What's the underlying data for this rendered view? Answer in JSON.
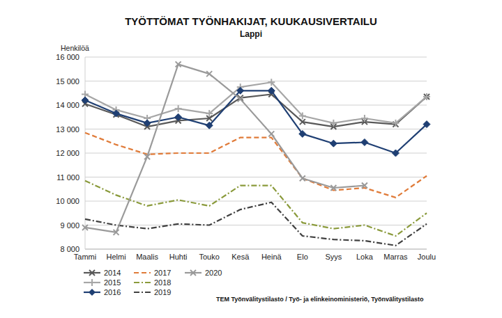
{
  "chart_data": {
    "type": "line",
    "title": "TYÖTTÖMAT TYÖNHAKIJAT, KUUKAUSIVERTAILU",
    "subtitle": "Lappi",
    "y_label": "Henkilöä",
    "source": "TEM Työnvälitystilasto / Työ- ja elinkeinoministeriö, Työnvälitystilasto",
    "categories": [
      "Tammi",
      "Helmi",
      "Maalis",
      "Huhti",
      "Touko",
      "Kesä",
      "Heinä",
      "Elo",
      "Syys",
      "Loka",
      "Marras",
      "Joulu"
    ],
    "ylim": [
      8000,
      16000
    ],
    "yticks": [
      {
        "value": 8000,
        "label": "8 000"
      },
      {
        "value": 9000,
        "label": "9 000"
      },
      {
        "value": 10000,
        "label": "10 000"
      },
      {
        "value": 11000,
        "label": "11 000"
      },
      {
        "value": 12000,
        "label": "12 000"
      },
      {
        "value": 13000,
        "label": "13 000"
      },
      {
        "value": 14000,
        "label": "14 000"
      },
      {
        "value": 15000,
        "label": "15 000"
      },
      {
        "value": 16000,
        "label": "16 000"
      }
    ],
    "grid": true,
    "legend": "bottom-left",
    "series": [
      {
        "name": "2014",
        "color": "#595959",
        "marker": "x",
        "line_style": "solid",
        "values": [
          14050,
          13600,
          13100,
          13350,
          13450,
          14300,
          14450,
          13300,
          13100,
          13300,
          13200,
          14350
        ]
      },
      {
        "name": "2015",
        "color": "#a6a6a6",
        "marker": "plus",
        "line_style": "solid",
        "values": [
          14450,
          13800,
          13450,
          13850,
          13650,
          14750,
          14950,
          13550,
          13250,
          13450,
          13250,
          14350
        ]
      },
      {
        "name": "2016",
        "color": "#1f3f73",
        "marker": "diamond",
        "line_style": "solid",
        "values": [
          14200,
          13650,
          13250,
          13500,
          13150,
          14600,
          14600,
          12800,
          12400,
          12450,
          12000,
          13200
        ]
      },
      {
        "name": "2017",
        "color": "#e07b39",
        "marker": "none",
        "line_style": "dashed",
        "values": [
          12850,
          12350,
          11950,
          12000,
          12000,
          12650,
          12650,
          10950,
          10450,
          10550,
          10150,
          11050
        ]
      },
      {
        "name": "2018",
        "color": "#8a9a3b",
        "marker": "none",
        "line_style": "dashdot",
        "values": [
          10850,
          10250,
          9800,
          10050,
          9800,
          10650,
          10650,
          9100,
          8850,
          9000,
          8550,
          9500
        ]
      },
      {
        "name": "2019",
        "color": "#404040",
        "marker": "none",
        "line_style": "dashdot",
        "values": [
          9250,
          9000,
          8850,
          9050,
          9000,
          9650,
          9950,
          8550,
          8400,
          8350,
          8150,
          9050
        ]
      },
      {
        "name": "2020",
        "color": "#9a9a9a",
        "marker": "x",
        "line_style": "solid",
        "values": [
          8900,
          8700,
          11850,
          15700,
          15300,
          14250,
          12800,
          10950,
          10550,
          10650,
          null,
          null
        ]
      }
    ]
  }
}
